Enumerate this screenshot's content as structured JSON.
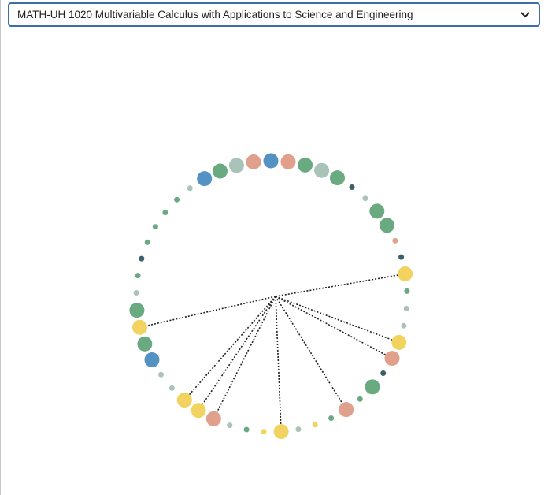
{
  "course_select": {
    "selected": "MATH-UH 1020 Multivariable Calculus with Applications to Science and Engineering",
    "icon": "chevron-down-icon"
  },
  "colors": {
    "green": "#6aaa80",
    "blue": "#5592c4",
    "salmon": "#e0a08c",
    "sage": "#a9c3b9",
    "dark": "#3b5f68",
    "yellow": "#f2d35f",
    "link": "#222222"
  },
  "diagram": {
    "nodes": [
      {
        "c": "salmon",
        "s": 2
      },
      {
        "c": "green",
        "s": 2
      },
      {
        "c": "sage",
        "s": 2
      },
      {
        "c": "green",
        "s": 2
      },
      {
        "c": "dark",
        "s": 0
      },
      {
        "c": "sage",
        "s": 0
      },
      {
        "c": "green",
        "s": 2
      },
      {
        "c": "green",
        "s": 2
      },
      {
        "c": "salmon",
        "s": 0
      },
      {
        "c": "dark",
        "s": 0
      },
      {
        "c": "yellow",
        "s": 2
      },
      {
        "c": "green",
        "s": 0
      },
      {
        "c": "sage",
        "s": 0
      },
      {
        "c": "sage",
        "s": 0
      },
      {
        "c": "yellow",
        "s": 2
      },
      {
        "c": "salmon",
        "s": 2
      },
      {
        "c": "dark",
        "s": 0
      },
      {
        "c": "green",
        "s": 2
      },
      {
        "c": "green",
        "s": 0
      },
      {
        "c": "salmon",
        "s": 2
      },
      {
        "c": "green",
        "s": 0
      },
      {
        "c": "yellow",
        "s": 0
      },
      {
        "c": "sage",
        "s": 0
      },
      {
        "c": "yellow",
        "s": 2
      },
      {
        "c": "yellow",
        "s": 0
      },
      {
        "c": "green",
        "s": 0
      },
      {
        "c": "sage",
        "s": 0
      },
      {
        "c": "salmon",
        "s": 2
      },
      {
        "c": "yellow",
        "s": 2
      },
      {
        "c": "yellow",
        "s": 2
      },
      {
        "c": "sage",
        "s": 0
      },
      {
        "c": "sage",
        "s": 0
      },
      {
        "c": "blue",
        "s": 2
      },
      {
        "c": "green",
        "s": 2
      },
      {
        "c": "yellow",
        "s": 2
      },
      {
        "c": "green",
        "s": 2
      },
      {
        "c": "sage",
        "s": 0
      },
      {
        "c": "green",
        "s": 0
      },
      {
        "c": "dark",
        "s": 0
      },
      {
        "c": "green",
        "s": 0
      },
      {
        "c": "green",
        "s": 0
      },
      {
        "c": "green",
        "s": 0
      },
      {
        "c": "green",
        "s": 0
      },
      {
        "c": "sage",
        "s": 0
      },
      {
        "c": "blue",
        "s": 2
      },
      {
        "c": "green",
        "s": 2
      },
      {
        "c": "sage",
        "s": 2
      },
      {
        "c": "salmon",
        "s": 2
      },
      {
        "c": "blue",
        "s": 2
      }
    ],
    "links": [
      10,
      14,
      15,
      19,
      23,
      27,
      28,
      29,
      34
    ]
  }
}
